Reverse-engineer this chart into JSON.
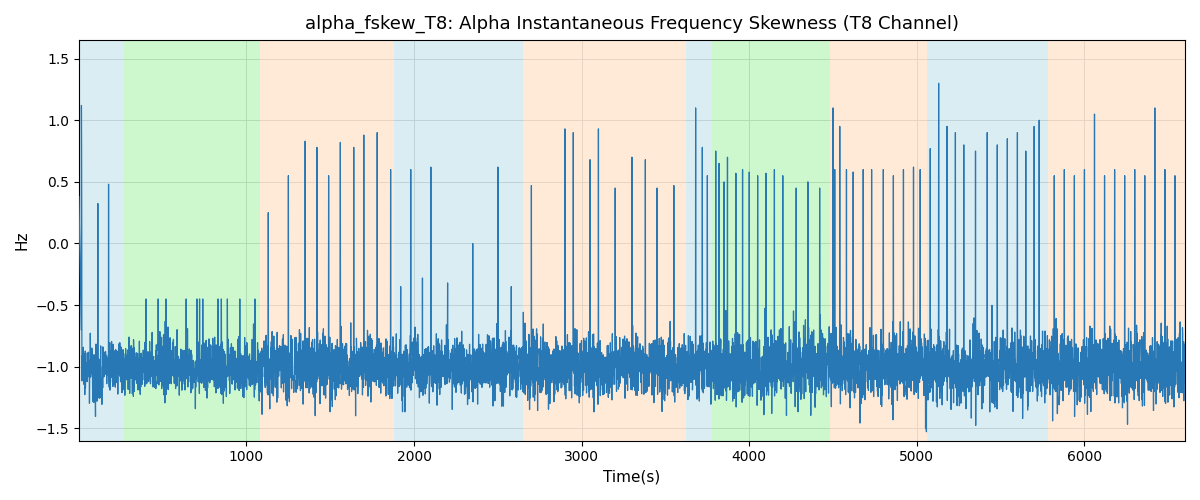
{
  "title": "alpha_fskew_T8: Alpha Instantaneous Frequency Skewness (T8 Channel)",
  "xlabel": "Time(s)",
  "ylabel": "Hz",
  "ylim": [
    -1.6,
    1.65
  ],
  "xlim": [
    0,
    6600
  ],
  "line_color": "#2878b5",
  "line_width": 0.9,
  "background_color": "#ffffff",
  "grid_color": "#c8c8c8",
  "title_fontsize": 13,
  "label_fontsize": 11,
  "tick_fontsize": 10,
  "bands": [
    {
      "start": 0,
      "end": 270,
      "color": "#add8e6",
      "alpha": 0.45
    },
    {
      "start": 270,
      "end": 1080,
      "color": "#90ee90",
      "alpha": 0.45
    },
    {
      "start": 1080,
      "end": 1880,
      "color": "#ffdab9",
      "alpha": 0.55
    },
    {
      "start": 1880,
      "end": 2650,
      "color": "#add8e6",
      "alpha": 0.45
    },
    {
      "start": 2650,
      "end": 3620,
      "color": "#ffdab9",
      "alpha": 0.55
    },
    {
      "start": 3620,
      "end": 3780,
      "color": "#add8e6",
      "alpha": 0.45
    },
    {
      "start": 3780,
      "end": 4480,
      "color": "#90ee90",
      "alpha": 0.45
    },
    {
      "start": 4480,
      "end": 5060,
      "color": "#ffdab9",
      "alpha": 0.55
    },
    {
      "start": 5060,
      "end": 5780,
      "color": "#add8e6",
      "alpha": 0.45
    },
    {
      "start": 5780,
      "end": 6600,
      "color": "#ffdab9",
      "alpha": 0.55
    }
  ],
  "seed": 17
}
